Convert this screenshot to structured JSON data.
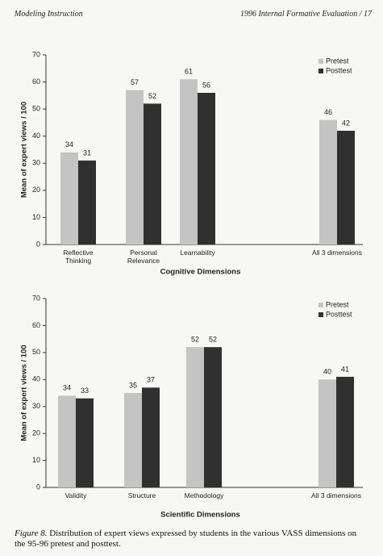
{
  "header": {
    "left": "Modeling Instruction",
    "right": "1996 Internal Formative Evaluation / 17"
  },
  "chart_data": [
    {
      "type": "bar",
      "categories": [
        "Reflective Thinking",
        "Personal Relevance",
        "Learnability",
        "All 3 dimensions"
      ],
      "series": [
        {
          "name": "Pretest",
          "color": "#c4c4c4",
          "values": [
            34,
            57,
            61,
            46
          ]
        },
        {
          "name": "Posttest",
          "color": "#303030",
          "values": [
            31,
            52,
            56,
            42
          ]
        }
      ],
      "y_label": "Mean of expert views / 100",
      "x_label": "Cognitive Dimensions",
      "ylim": [
        0,
        70
      ],
      "yticks": [
        0,
        10,
        20,
        30,
        40,
        50,
        60,
        70
      ],
      "legend": "top-right"
    },
    {
      "type": "bar",
      "categories": [
        "Validity",
        "Structure",
        "Methodology",
        "All 3 dimensions"
      ],
      "series": [
        {
          "name": "Pretest",
          "color": "#c4c4c4",
          "values": [
            34,
            35,
            52,
            40
          ]
        },
        {
          "name": "Posttest",
          "color": "#303030",
          "values": [
            33,
            37,
            52,
            41
          ]
        }
      ],
      "y_label": "Mean of expert views / 100",
      "x_label": "Scientific Dimensions",
      "ylim": [
        0,
        70
      ],
      "yticks": [
        0,
        10,
        20,
        30,
        40,
        50,
        60,
        70
      ],
      "legend": "top-right"
    }
  ],
  "caption": {
    "label": "Figure 8.",
    "text": "Distribution of expert views expressed by students in the various VASS dimensions on the 95-96 pretest and posttest."
  }
}
